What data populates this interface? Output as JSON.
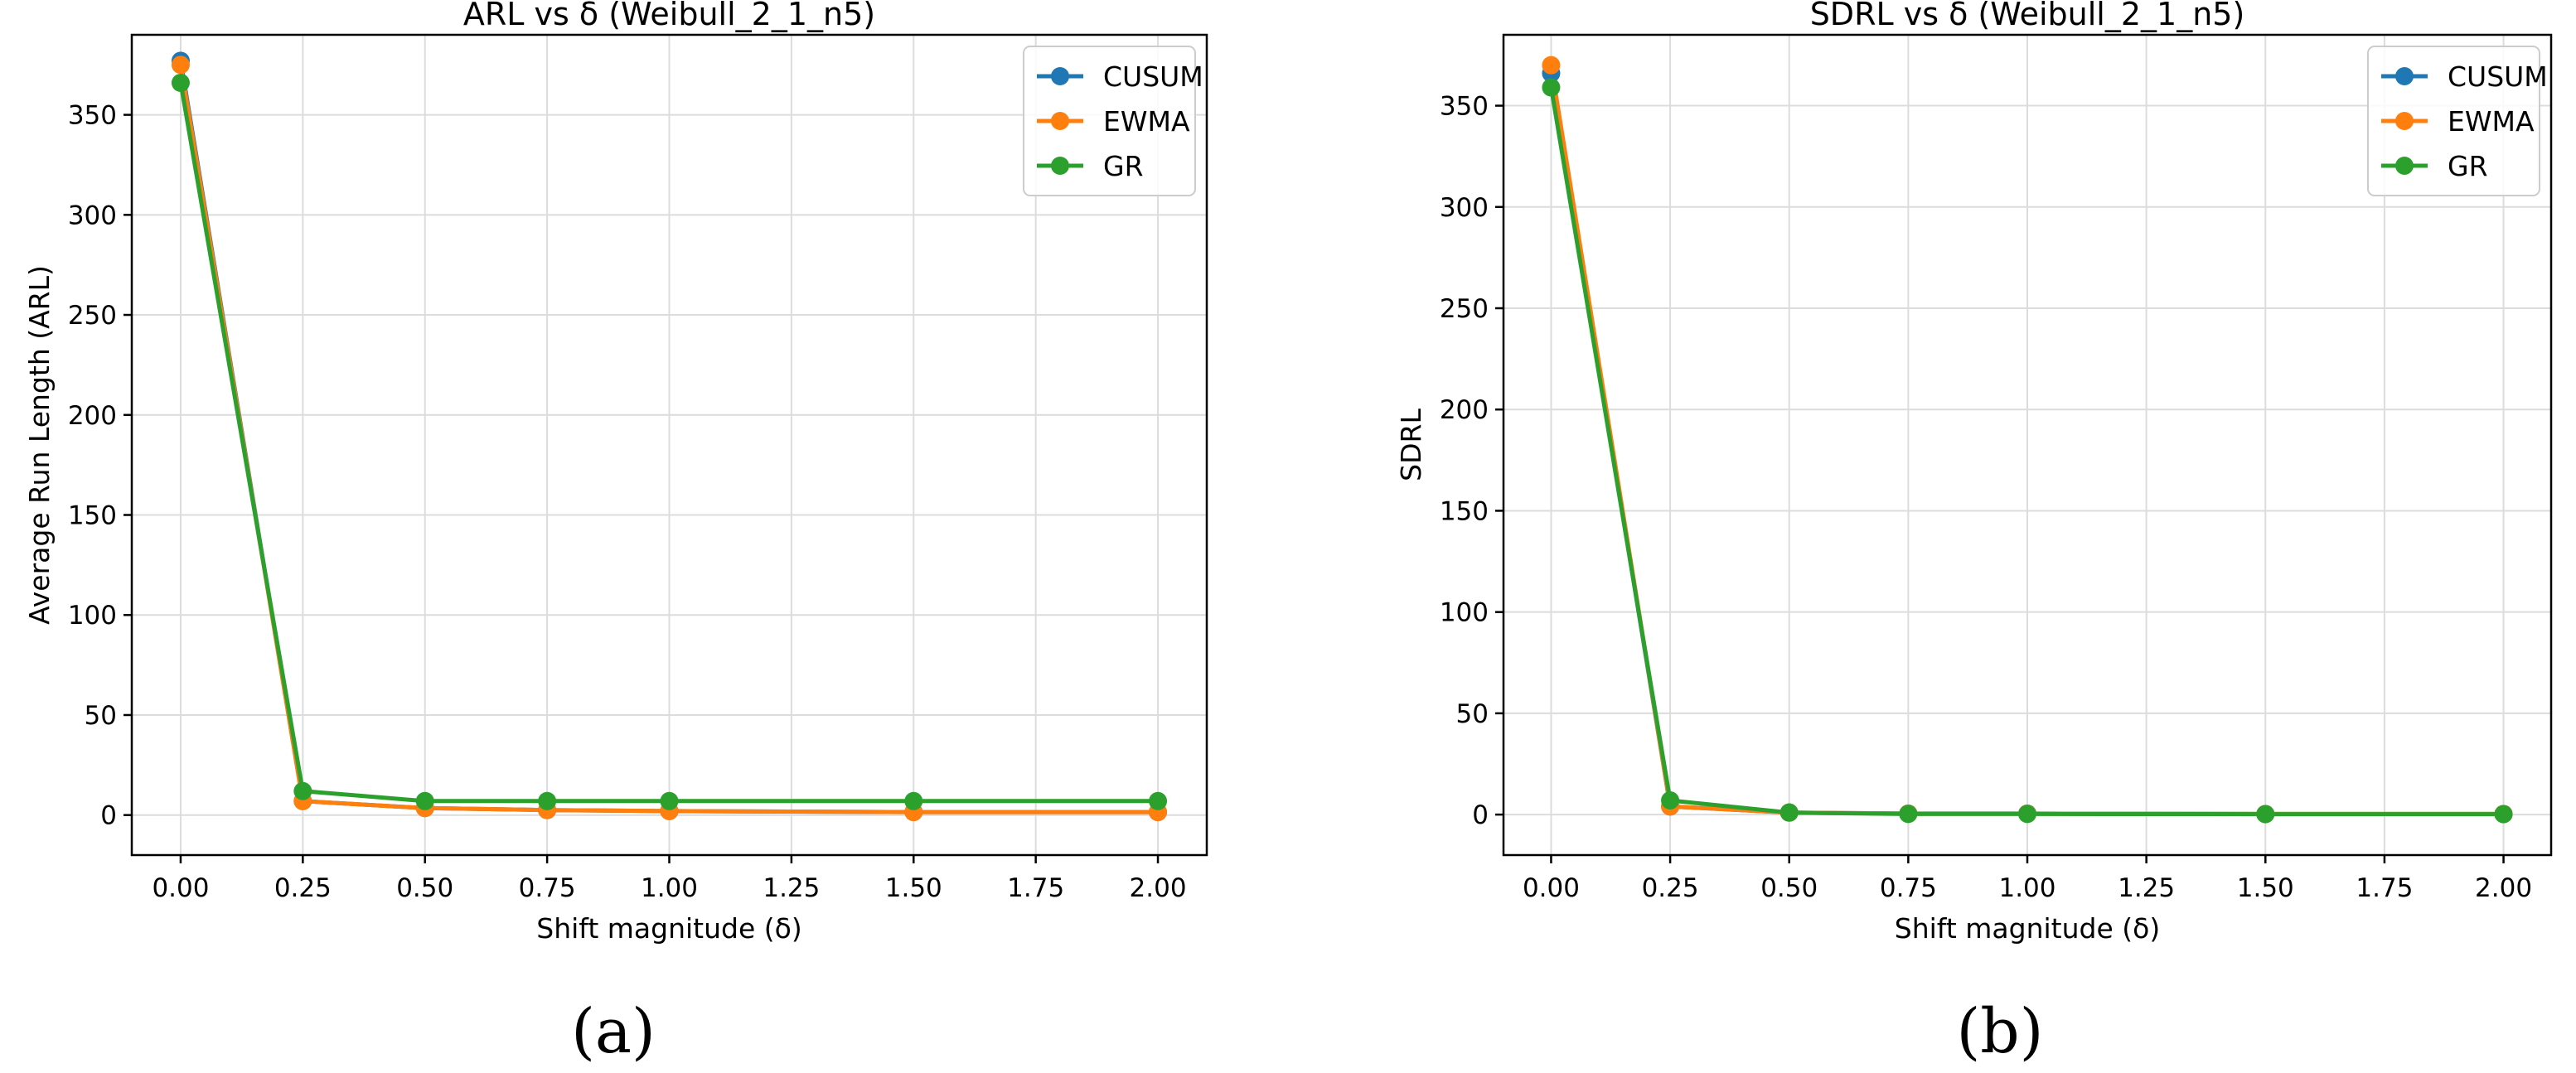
{
  "colors": {
    "CUSUM": "#1f77b4",
    "EWMA": "#ff7f0e",
    "GR": "#2ca02c"
  },
  "chart_data": [
    {
      "type": "line",
      "title": "ARL vs δ (Weibull_2_1_n5)",
      "xlabel": "Shift magnitude (δ)",
      "ylabel": "Average Run Length (ARL)",
      "panel_label": "(a)",
      "xlim": [
        -0.1,
        2.1
      ],
      "ylim": [
        -20,
        390
      ],
      "xticks": [
        0.0,
        0.25,
        0.5,
        0.75,
        1.0,
        1.25,
        1.5,
        1.75,
        2.0
      ],
      "xtick_labels": [
        "0.00",
        "0.25",
        "0.50",
        "0.75",
        "1.00",
        "1.25",
        "1.50",
        "1.75",
        "2.00"
      ],
      "yticks": [
        0,
        50,
        100,
        150,
        200,
        250,
        300,
        350
      ],
      "ytick_labels": [
        "0",
        "50",
        "100",
        "150",
        "200",
        "250",
        "300",
        "350"
      ],
      "grid": true,
      "legend": "top-right",
      "x": [
        0.0,
        0.25,
        0.5,
        0.75,
        1.0,
        1.5,
        2.0
      ],
      "series": [
        {
          "name": "CUSUM",
          "values": [
            377,
            7,
            3.5,
            2.5,
            2,
            1.5,
            1.5
          ]
        },
        {
          "name": "EWMA",
          "values": [
            375,
            7,
            3.5,
            2.5,
            2,
            1.5,
            1.5
          ]
        },
        {
          "name": "GR",
          "values": [
            366,
            12,
            7,
            7,
            7,
            7,
            7
          ]
        }
      ]
    },
    {
      "type": "line",
      "title": "SDRL vs δ (Weibull_2_1_n5)",
      "xlabel": "Shift magnitude (δ)",
      "ylabel": "SDRL",
      "panel_label": "(b)",
      "xlim": [
        -0.1,
        2.1
      ],
      "ylim": [
        -20,
        385
      ],
      "xticks": [
        0.0,
        0.25,
        0.5,
        0.75,
        1.0,
        1.25,
        1.5,
        1.75,
        2.0
      ],
      "xtick_labels": [
        "0.00",
        "0.25",
        "0.50",
        "0.75",
        "1.00",
        "1.25",
        "1.50",
        "1.75",
        "2.00"
      ],
      "yticks": [
        0,
        50,
        100,
        150,
        200,
        250,
        300,
        350
      ],
      "ytick_labels": [
        "0",
        "50",
        "100",
        "150",
        "200",
        "250",
        "300",
        "350"
      ],
      "grid": true,
      "legend": "top-right",
      "x": [
        0.0,
        0.25,
        0.5,
        0.75,
        1.0,
        1.5,
        2.0
      ],
      "series": [
        {
          "name": "CUSUM",
          "values": [
            366,
            4,
            1,
            0.5,
            0.5,
            0.3,
            0.3
          ]
        },
        {
          "name": "EWMA",
          "values": [
            370,
            4,
            1,
            0.5,
            0.5,
            0.3,
            0.3
          ]
        },
        {
          "name": "GR",
          "values": [
            359,
            7,
            1,
            0.3,
            0.3,
            0.2,
            0.2
          ]
        }
      ]
    }
  ]
}
